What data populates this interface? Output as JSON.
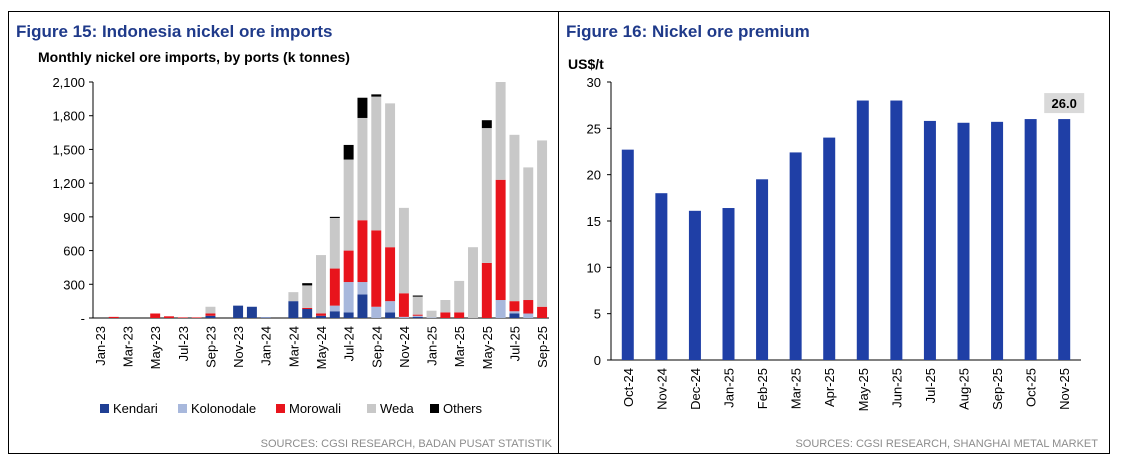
{
  "chart_data": [
    {
      "type": "bar",
      "stacked": true,
      "title": "Figure 15: Indonesia nickel ore imports",
      "subtitle": "Monthly nickel ore imports, by ports (k tonnes)",
      "ylim": [
        0,
        2100
      ],
      "yticks": [
        "2,100",
        "1,800",
        "1,500",
        "1,200",
        "900",
        "600",
        "300",
        "-"
      ],
      "ytick_values": [
        2100,
        1800,
        1500,
        1200,
        900,
        600,
        300,
        0
      ],
      "categories": [
        "Jan-23",
        "Feb-23",
        "Mar-23",
        "Apr-23",
        "May-23",
        "Jun-23",
        "Jul-23",
        "Aug-23",
        "Sep-23",
        "Oct-23",
        "Nov-23",
        "Dec-23",
        "Jan-24",
        "Feb-24",
        "Mar-24",
        "Apr-24",
        "May-24",
        "Jun-24",
        "Jul-24",
        "Aug-24",
        "Sep-24",
        "Oct-24",
        "Nov-24",
        "Dec-24",
        "Jan-25",
        "Feb-25",
        "Mar-25",
        "Apr-25",
        "May-25",
        "Jun-25",
        "Jul-25",
        "Aug-25",
        "Sep-25"
      ],
      "xtick_labels": [
        "Jan-23",
        "Mar-23",
        "May-23",
        "Jul-23",
        "Sep-23",
        "Nov-23",
        "Jan-24",
        "Mar-24",
        "May-24",
        "Jul-24",
        "Sep-24",
        "Nov-24",
        "Jan-25",
        "Mar-25",
        "May-25",
        "Jul-25",
        "Sep-25"
      ],
      "series": [
        {
          "name": "Kendari",
          "color": "#1f3f94",
          "values": [
            0,
            0,
            0,
            0,
            0,
            0,
            0,
            0,
            20,
            0,
            110,
            100,
            5,
            0,
            150,
            80,
            20,
            60,
            50,
            210,
            0,
            50,
            0,
            10,
            0,
            0,
            0,
            0,
            0,
            0,
            40,
            0,
            0
          ]
        },
        {
          "name": "Kolonodale",
          "color": "#a8b8dc",
          "values": [
            0,
            0,
            0,
            0,
            0,
            0,
            0,
            0,
            0,
            0,
            0,
            0,
            0,
            0,
            0,
            0,
            0,
            50,
            270,
            110,
            100,
            100,
            10,
            10,
            5,
            0,
            0,
            0,
            0,
            160,
            20,
            40,
            0
          ]
        },
        {
          "name": "Morowali",
          "color": "#e8141c",
          "values": [
            0,
            10,
            0,
            0,
            40,
            15,
            5,
            5,
            20,
            0,
            0,
            0,
            0,
            0,
            0,
            10,
            20,
            330,
            280,
            550,
            680,
            480,
            210,
            10,
            0,
            50,
            50,
            0,
            490,
            1070,
            90,
            120,
            100
          ]
        },
        {
          "name": "Weda",
          "color": "#c8c8c8",
          "values": [
            0,
            0,
            0,
            0,
            0,
            0,
            0,
            0,
            60,
            0,
            0,
            0,
            0,
            0,
            80,
            200,
            520,
            450,
            810,
            910,
            1190,
            1280,
            760,
            160,
            60,
            110,
            280,
            630,
            1200,
            870,
            1480,
            1180,
            1480
          ]
        },
        {
          "name": "Others",
          "color": "#000000",
          "values": [
            0,
            0,
            0,
            0,
            0,
            0,
            0,
            0,
            0,
            0,
            0,
            0,
            0,
            0,
            0,
            20,
            0,
            10,
            130,
            180,
            20,
            0,
            0,
            10,
            0,
            0,
            0,
            0,
            70,
            0,
            0,
            0,
            0
          ]
        }
      ],
      "source": "SOURCES: CGSI RESEARCH, BADAN PUSAT STATISTIK"
    },
    {
      "type": "bar",
      "title": "Figure 16: Nickel ore premium",
      "ylabel": "US$/t",
      "ylim": [
        0,
        30
      ],
      "yticks": [
        "30",
        "25",
        "20",
        "15",
        "10",
        "5",
        "0"
      ],
      "ytick_values": [
        30,
        25,
        20,
        15,
        10,
        5,
        0
      ],
      "categories": [
        "Oct-24",
        "Nov-24",
        "Dec-24",
        "Jan-25",
        "Feb-25",
        "Mar-25",
        "Apr-25",
        "May-25",
        "Jun-25",
        "Jul-25",
        "Aug-25",
        "Sep-25",
        "Oct-25",
        "Nov-25"
      ],
      "values": [
        22.7,
        18.0,
        16.1,
        16.4,
        19.5,
        22.4,
        24.0,
        28.0,
        28.0,
        25.8,
        25.6,
        25.7,
        26.0,
        26.0
      ],
      "color": "#1f3fa6",
      "annotation": "26.0",
      "source": "SOURCES: CGSI RESEARCH, SHANGHAI METAL MARKET"
    }
  ]
}
